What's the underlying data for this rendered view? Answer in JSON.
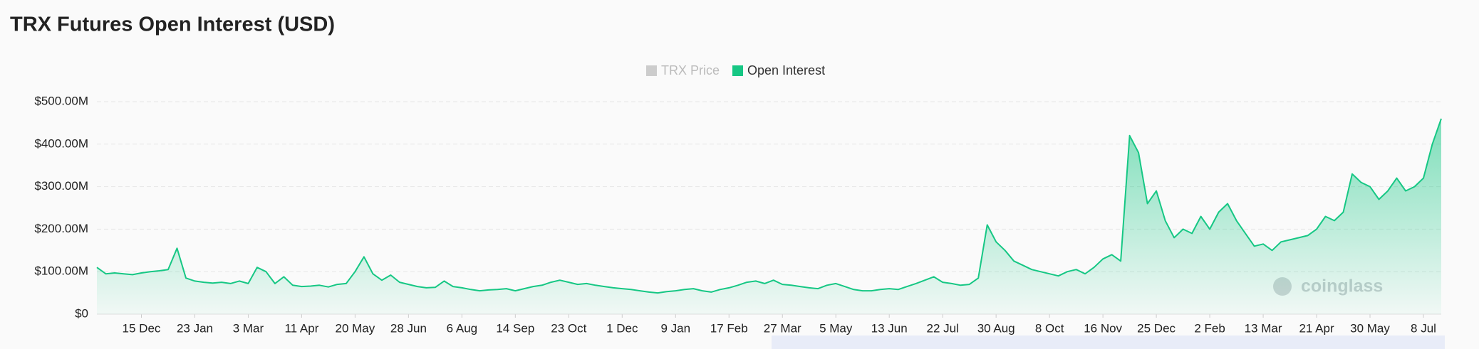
{
  "chart_data": {
    "type": "area",
    "title": "TRX Futures Open Interest (USD)",
    "watermark": "coinglass",
    "legend": [
      "TRX Price",
      "Open Interest"
    ],
    "legend_position": "top",
    "series": [
      {
        "name": "Open Interest",
        "color": "#16c784",
        "values": [
          110000000.0,
          95000000.0,
          97000000.0,
          95000000.0,
          93000000.0,
          97000000.0,
          100000000.0,
          102000000.0,
          105000000.0,
          155000000.0,
          85000000.0,
          78000000.0,
          75000000.0,
          73000000.0,
          75000000.0,
          72000000.0,
          78000000.0,
          72000000.0,
          110000000.0,
          100000000.0,
          72000000.0,
          88000000.0,
          68000000.0,
          65000000.0,
          66000000.0,
          68000000.0,
          64000000.0,
          70000000.0,
          72000000.0,
          100000000.0,
          135000000.0,
          95000000.0,
          80000000.0,
          92000000.0,
          75000000.0,
          70000000.0,
          65000000.0,
          62000000.0,
          63000000.0,
          78000000.0,
          65000000.0,
          62000000.0,
          58000000.0,
          55000000.0,
          57000000.0,
          58000000.0,
          60000000.0,
          55000000.0,
          60000000.0,
          65000000.0,
          68000000.0,
          75000000.0,
          80000000.0,
          75000000.0,
          70000000.0,
          72000000.0,
          68000000.0,
          65000000.0,
          62000000.0,
          60000000.0,
          58000000.0,
          55000000.0,
          52000000.0,
          50000000.0,
          53000000.0,
          55000000.0,
          58000000.0,
          60000000.0,
          55000000.0,
          52000000.0,
          58000000.0,
          62000000.0,
          68000000.0,
          75000000.0,
          78000000.0,
          72000000.0,
          80000000.0,
          70000000.0,
          68000000.0,
          65000000.0,
          62000000.0,
          60000000.0,
          68000000.0,
          72000000.0,
          65000000.0,
          58000000.0,
          55000000.0,
          55000000.0,
          58000000.0,
          60000000.0,
          58000000.0,
          65000000.0,
          72000000.0,
          80000000.0,
          88000000.0,
          75000000.0,
          72000000.0,
          68000000.0,
          70000000.0,
          85000000.0,
          210000000.0,
          170000000.0,
          150000000.0,
          125000000.0,
          115000000.0,
          105000000.0,
          100000000.0,
          95000000.0,
          90000000.0,
          100000000.0,
          105000000.0,
          95000000.0,
          110000000.0,
          130000000.0,
          140000000.0,
          125000000.0,
          420000000.0,
          380000000.0,
          260000000.0,
          290000000.0,
          220000000.0,
          180000000.0,
          200000000.0,
          190000000.0,
          230000000.0,
          200000000.0,
          240000000.0,
          260000000.0,
          220000000.0,
          190000000.0,
          160000000.0,
          165000000.0,
          150000000.0,
          170000000.0,
          175000000.0,
          180000000.0,
          185000000.0,
          200000000.0,
          230000000.0,
          220000000.0,
          240000000.0,
          330000000.0,
          310000000.0,
          300000000.0,
          270000000.0,
          290000000.0,
          320000000.0,
          290000000.0,
          300000000.0,
          320000000.0,
          400000000.0,
          460000000.0
        ]
      }
    ],
    "disabled_series_color": "#cccccc",
    "xlim": [
      0,
      151
    ],
    "xticks": [
      {
        "value": 5,
        "label": "15 Dec"
      },
      {
        "value": 11,
        "label": "23 Jan"
      },
      {
        "value": 17,
        "label": "3 Mar"
      },
      {
        "value": 23,
        "label": "11 Apr"
      },
      {
        "value": 29,
        "label": "20 May"
      },
      {
        "value": 35,
        "label": "28 Jun"
      },
      {
        "value": 41,
        "label": "6 Aug"
      },
      {
        "value": 47,
        "label": "14 Sep"
      },
      {
        "value": 53,
        "label": "23 Oct"
      },
      {
        "value": 59,
        "label": "1 Dec"
      },
      {
        "value": 65,
        "label": "9 Jan"
      },
      {
        "value": 71,
        "label": "17 Feb"
      },
      {
        "value": 77,
        "label": "27 Mar"
      },
      {
        "value": 83,
        "label": "5 May"
      },
      {
        "value": 89,
        "label": "13 Jun"
      },
      {
        "value": 95,
        "label": "22 Jul"
      },
      {
        "value": 101,
        "label": "30 Aug"
      },
      {
        "value": 107,
        "label": "8 Oct"
      },
      {
        "value": 113,
        "label": "16 Nov"
      },
      {
        "value": 119,
        "label": "25 Dec"
      },
      {
        "value": 125,
        "label": "2 Feb"
      },
      {
        "value": 131,
        "label": "13 Mar"
      },
      {
        "value": 137,
        "label": "21 Apr"
      },
      {
        "value": 143,
        "label": "30 May"
      },
      {
        "value": 149,
        "label": "8 Jul"
      }
    ],
    "ylim": [
      0,
      500000000
    ],
    "yticks": [
      {
        "value": 0,
        "label": "$0"
      },
      {
        "value": 100000000,
        "label": "$100.00M"
      },
      {
        "value": 200000000,
        "label": "$200.00M"
      },
      {
        "value": 300000000,
        "label": "$300.00M"
      },
      {
        "value": 400000000,
        "label": "$400.00M"
      },
      {
        "value": 500000000,
        "label": "$500.00M"
      }
    ],
    "grid": true
  }
}
